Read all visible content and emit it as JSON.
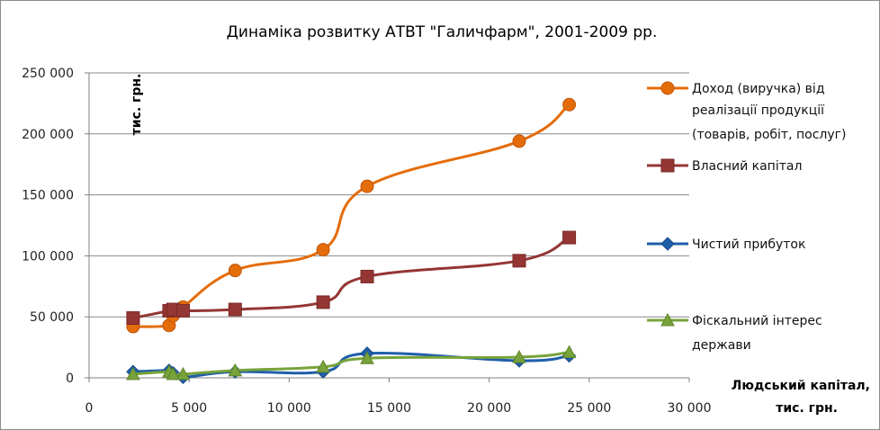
{
  "chart_data": {
    "type": "scatter",
    "title": "Динаміка розвитку АТВТ \"Галичфарм\", 2001-2009 рр.",
    "xlabel": [
      "Людський капітал,",
      "тис. грн."
    ],
    "ylabel": "тис. грн.",
    "xlim": [
      0,
      30000
    ],
    "ylim": [
      0,
      250000
    ],
    "x_ticks": [
      0,
      5000,
      10000,
      15000,
      20000,
      25000,
      30000
    ],
    "x_tick_labels": [
      "0",
      "5 000",
      "10 000",
      "15 000",
      "20 000",
      "25 000",
      "30 000"
    ],
    "y_ticks": [
      0,
      50000,
      100000,
      150000,
      200000,
      250000
    ],
    "y_tick_labels": [
      "0",
      "50 000",
      "100 000",
      "150 000",
      "200 000",
      "250 000"
    ],
    "grid": "horizontal",
    "legend_position": "right",
    "series": [
      {
        "name": [
          "Доход (виручка) від",
          "реалізації продукції",
          "(товарів, робіт, послуг)"
        ],
        "color": "#E46C0A",
        "marker": "circle",
        "points": [
          [
            2200,
            42000
          ],
          [
            4000,
            43000
          ],
          [
            4200,
            51000
          ],
          [
            4700,
            58000
          ],
          [
            7300,
            88000
          ],
          [
            11700,
            105000
          ],
          [
            13900,
            157000
          ],
          [
            21500,
            194000
          ],
          [
            24000,
            224000
          ]
        ]
      },
      {
        "name": [
          "Власний капітал"
        ],
        "color": "#943634",
        "marker": "square",
        "points": [
          [
            2200,
            49000
          ],
          [
            4000,
            55000
          ],
          [
            4200,
            56000
          ],
          [
            4700,
            55000
          ],
          [
            7300,
            56000
          ],
          [
            11700,
            62000
          ],
          [
            13900,
            83000
          ],
          [
            21500,
            96000
          ],
          [
            24000,
            115000
          ]
        ]
      },
      {
        "name": [
          "Чистий прибуток"
        ],
        "color": "#1F5FAA",
        "marker": "diamond",
        "points": [
          [
            2200,
            5000
          ],
          [
            4000,
            6000
          ],
          [
            4200,
            4000
          ],
          [
            4700,
            500
          ],
          [
            7300,
            5000
          ],
          [
            11700,
            5000
          ],
          [
            13900,
            20000
          ],
          [
            21500,
            14000
          ],
          [
            24000,
            18000
          ]
        ]
      },
      {
        "name": [
          "Фіскальний інтерес",
          "держави"
        ],
        "color": "#77A33A",
        "marker": "triangle",
        "points": [
          [
            2200,
            3000
          ],
          [
            4000,
            5000
          ],
          [
            4200,
            3000
          ],
          [
            4700,
            3000
          ],
          [
            7300,
            6000
          ],
          [
            11700,
            9000
          ],
          [
            13900,
            16000
          ],
          [
            21500,
            17000
          ],
          [
            24000,
            21000
          ]
        ]
      }
    ]
  }
}
